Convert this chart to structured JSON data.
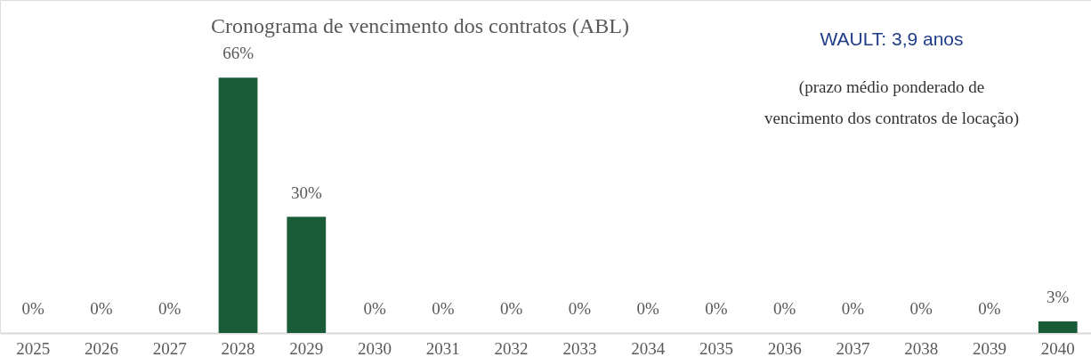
{
  "chart_data": {
    "type": "bar",
    "title": "Cronograma de vencimento dos contratos (ABL)",
    "categories": [
      "2025",
      "2026",
      "2027",
      "2028",
      "2029",
      "2030",
      "2031",
      "2032",
      "2033",
      "2034",
      "2035",
      "2036",
      "2037",
      "2038",
      "2039",
      "2040"
    ],
    "values": [
      0,
      0,
      0,
      66,
      30,
      0,
      0,
      0,
      0,
      0,
      0,
      0,
      0,
      0,
      0,
      3
    ],
    "value_labels": [
      "0%",
      "0%",
      "0%",
      "66%",
      "30%",
      "0%",
      "0%",
      "0%",
      "0%",
      "0%",
      "0%",
      "0%",
      "0%",
      "0%",
      "0%",
      "3%"
    ],
    "color": "#1a5c38",
    "annotations": [
      "WAULT: 3,9 anos",
      "(prazo médio ponderado de vencimento dos contratos de locação)"
    ],
    "grid": false
  }
}
